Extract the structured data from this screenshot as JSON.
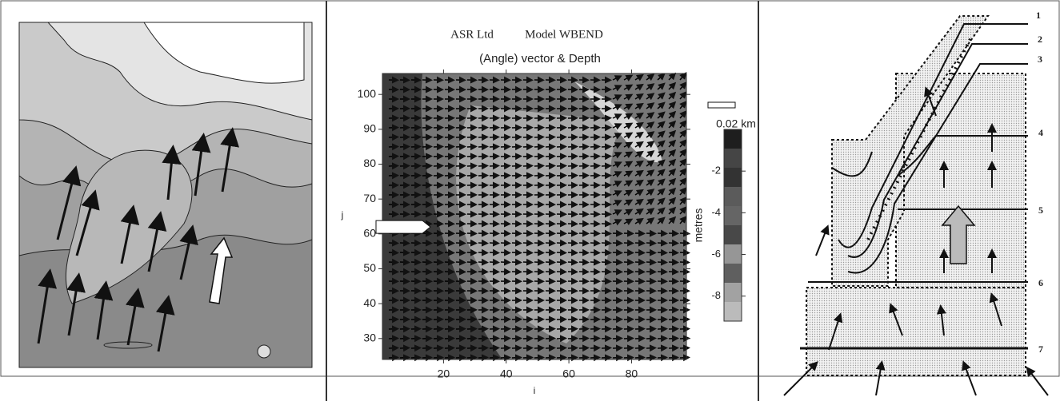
{
  "middle": {
    "title_left": "ASR Ltd",
    "title_right": "Model WBEND",
    "subtitle": "(Angle) vector & Depth",
    "xlabel": "i",
    "ylabel": "j",
    "xlim": [
      0.5,
      97.5
    ],
    "ylim": [
      24,
      106
    ],
    "xticks": [
      20,
      40,
      60,
      80
    ],
    "yticks": [
      30,
      40,
      50,
      60,
      70,
      80,
      90,
      100
    ],
    "scale_label": "0.02 km",
    "colorbar": {
      "label": "metres",
      "lim": [
        -9.2,
        0
      ],
      "ticks": [
        -2,
        -4,
        -6,
        -8
      ]
    }
  },
  "right": {
    "line_labels": [
      "1",
      "2",
      "3",
      "4",
      "5",
      "6",
      "7"
    ]
  }
}
